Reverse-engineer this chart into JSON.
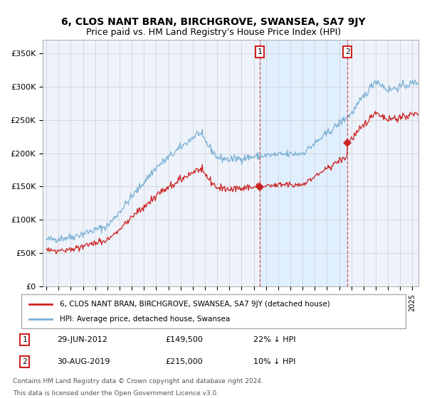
{
  "title": "6, CLOS NANT BRAN, BIRCHGROVE, SWANSEA, SA7 9JY",
  "subtitle": "Price paid vs. HM Land Registry's House Price Index (HPI)",
  "ylabel_ticks": [
    "£0",
    "£50K",
    "£100K",
    "£150K",
    "£200K",
    "£250K",
    "£300K",
    "£350K"
  ],
  "ytick_values": [
    0,
    50000,
    100000,
    150000,
    200000,
    250000,
    300000,
    350000
  ],
  "ylim": [
    0,
    370000
  ],
  "xlim_start": 1994.7,
  "xlim_end": 2025.5,
  "sale1": {
    "date_label": "29-JUN-2012",
    "price": 149500,
    "pct": "22% ↓ HPI",
    "year": 2012.5
  },
  "sale2": {
    "date_label": "30-AUG-2019",
    "price": 215000,
    "pct": "10% ↓ HPI",
    "year": 2019.67
  },
  "legend_entry1": "6, CLOS NANT BRAN, BIRCHGROVE, SWANSEA, SA7 9JY (detached house)",
  "legend_entry2": "HPI: Average price, detached house, Swansea",
  "footer1": "Contains HM Land Registry data © Crown copyright and database right 2024.",
  "footer2": "This data is licensed under the Open Government Licence v3.0.",
  "hpi_color": "#7ab0d4",
  "sale_color": "#cc2222",
  "marker_color": "#cc2222",
  "vline_color": "#cc4444",
  "box_color": "#cc2222",
  "shade_color": "#ddeeff",
  "background_color": "#eef3fb",
  "grid_color": "#cccccc",
  "legend_border_color": "#aaaaaa"
}
